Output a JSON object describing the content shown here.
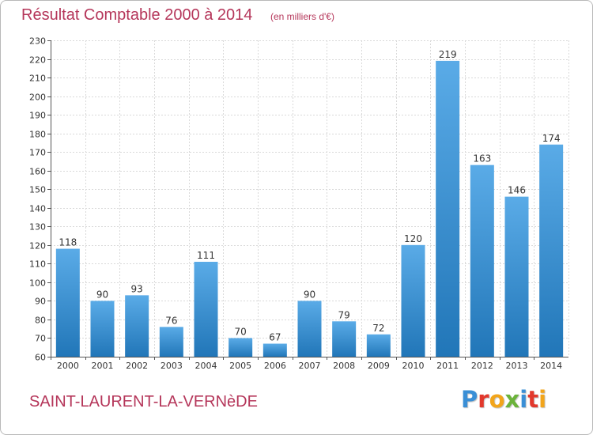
{
  "header": {
    "title": "Résultat Comptable 2000 à 2014",
    "subtitle": "(en milliers d'€)"
  },
  "footer": {
    "commune": "SAINT-LAURENT-LA-VERNèDE",
    "logo_letters": [
      "P",
      "r",
      "o",
      "x",
      "i",
      "t",
      "i"
    ]
  },
  "colors": {
    "title": "#b5365a",
    "bar_top": "#5aabe7",
    "bar_bottom": "#2176b8",
    "grid": "#d9d9d9",
    "axis": "#555555"
  },
  "chart_data": {
    "type": "bar",
    "title": "Résultat Comptable 2000 à 2014",
    "xlabel": "",
    "ylabel": "",
    "categories": [
      "2000",
      "2001",
      "2002",
      "2003",
      "2004",
      "2005",
      "2006",
      "2007",
      "2008",
      "2009",
      "2010",
      "2011",
      "2012",
      "2013",
      "2014"
    ],
    "values": [
      118,
      90,
      93,
      76,
      111,
      70,
      67,
      90,
      79,
      72,
      120,
      219,
      163,
      146,
      174
    ],
    "ylim": [
      60,
      230
    ],
    "yticks": [
      60,
      70,
      80,
      90,
      100,
      110,
      120,
      130,
      140,
      150,
      160,
      170,
      180,
      190,
      200,
      210,
      220,
      230
    ],
    "grid": true,
    "data_labels": true
  }
}
